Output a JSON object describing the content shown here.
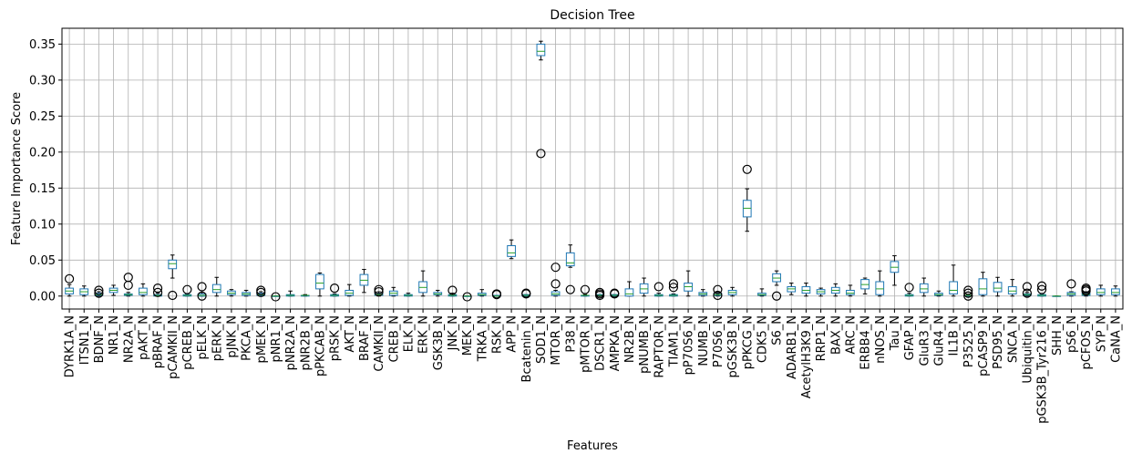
{
  "chart_data": {
    "type": "box",
    "title": "Decision Tree",
    "xlabel": "Features",
    "ylabel": "Feature Importance Score",
    "ylim": [
      -0.018,
      0.372
    ],
    "yticks": [
      0.0,
      0.05,
      0.1,
      0.15,
      0.2,
      0.25,
      0.3,
      0.35
    ],
    "ytick_labels": [
      "0.00",
      "0.05",
      "0.10",
      "0.15",
      "0.20",
      "0.25",
      "0.30",
      "0.35"
    ],
    "grid": true,
    "colors": {
      "box": "#1f77b4",
      "median": "#2ca02c",
      "whisker": "#000000",
      "grid": "#b0b0b0"
    },
    "boxes": [
      {
        "label": "DYRK1A_N",
        "lo": 0.0,
        "q1": 0.003,
        "med": 0.007,
        "q3": 0.011,
        "hi": 0.016,
        "fliers": [
          0.024
        ]
      },
      {
        "label": "ITSN1_N",
        "lo": 0.0,
        "q1": 0.002,
        "med": 0.006,
        "q3": 0.01,
        "hi": 0.014,
        "fliers": []
      },
      {
        "label": "BDNF_N",
        "lo": 0.0,
        "q1": 0.001,
        "med": 0.002,
        "q3": 0.004,
        "hi": 0.006,
        "fliers": [
          0.008,
          0.004
        ]
      },
      {
        "label": "NR1_N",
        "lo": 0.001,
        "q1": 0.005,
        "med": 0.008,
        "q3": 0.011,
        "hi": 0.015,
        "fliers": []
      },
      {
        "label": "NR2A_N",
        "lo": 0.0,
        "q1": 0.001,
        "med": 0.002,
        "q3": 0.003,
        "hi": 0.005,
        "fliers": [
          0.026,
          0.015
        ]
      },
      {
        "label": "pAKT_N",
        "lo": 0.0,
        "q1": 0.002,
        "med": 0.005,
        "q3": 0.011,
        "hi": 0.017,
        "fliers": []
      },
      {
        "label": "pBRAF_N",
        "lo": 0.0,
        "q1": 0.0,
        "med": 0.001,
        "q3": 0.002,
        "hi": 0.004,
        "fliers": [
          0.011,
          0.005
        ]
      },
      {
        "label": "pCAMKII_N",
        "lo": 0.025,
        "q1": 0.038,
        "med": 0.045,
        "q3": 0.05,
        "hi": 0.057,
        "fliers": [
          0.001
        ]
      },
      {
        "label": "pCREB_N",
        "lo": 0.0,
        "q1": 0.0,
        "med": 0.001,
        "q3": 0.002,
        "hi": 0.003,
        "fliers": [
          0.009
        ]
      },
      {
        "label": "pELK_N",
        "lo": 0.0,
        "q1": 0.0,
        "med": 0.001,
        "q3": 0.003,
        "hi": 0.005,
        "fliers": [
          0.013,
          0.0
        ]
      },
      {
        "label": "pERK_N",
        "lo": 0.0,
        "q1": 0.005,
        "med": 0.009,
        "q3": 0.016,
        "hi": 0.026,
        "fliers": []
      },
      {
        "label": "pJNK_N",
        "lo": 0.0,
        "q1": 0.002,
        "med": 0.004,
        "q3": 0.007,
        "hi": 0.009,
        "fliers": []
      },
      {
        "label": "PKCA_N",
        "lo": 0.0,
        "q1": 0.001,
        "med": 0.003,
        "q3": 0.005,
        "hi": 0.008,
        "fliers": []
      },
      {
        "label": "pMEK_N",
        "lo": 0.0,
        "q1": 0.001,
        "med": 0.002,
        "q3": 0.004,
        "hi": 0.006,
        "fliers": [
          0.008,
          0.005
        ]
      },
      {
        "label": "pNR1_N",
        "lo": 0.0,
        "q1": 0.0,
        "med": 0.0,
        "q3": 0.0,
        "hi": 0.0,
        "fliers": [
          -0.001
        ]
      },
      {
        "label": "pNR2A_N",
        "lo": 0.0,
        "q1": 0.0,
        "med": 0.001,
        "q3": 0.002,
        "hi": 0.007,
        "fliers": []
      },
      {
        "label": "pNR2B_N",
        "lo": 0.0,
        "q1": 0.0,
        "med": 0.001,
        "q3": 0.001,
        "hi": 0.002,
        "fliers": []
      },
      {
        "label": "pPKCAB_N",
        "lo": 0.0,
        "q1": 0.01,
        "med": 0.018,
        "q3": 0.03,
        "hi": 0.032,
        "fliers": []
      },
      {
        "label": "pRSK_N",
        "lo": 0.0,
        "q1": 0.0,
        "med": 0.001,
        "q3": 0.002,
        "hi": 0.003,
        "fliers": [
          0.011
        ]
      },
      {
        "label": "AKT_N",
        "lo": 0.0,
        "q1": 0.001,
        "med": 0.004,
        "q3": 0.008,
        "hi": 0.016,
        "fliers": []
      },
      {
        "label": "BRAF_N",
        "lo": 0.005,
        "q1": 0.015,
        "med": 0.022,
        "q3": 0.03,
        "hi": 0.037,
        "fliers": []
      },
      {
        "label": "CAMKII_N",
        "lo": 0.0,
        "q1": 0.001,
        "med": 0.002,
        "q3": 0.004,
        "hi": 0.006,
        "fliers": [
          0.009,
          0.006
        ]
      },
      {
        "label": "CREB_N",
        "lo": 0.0,
        "q1": 0.001,
        "med": 0.004,
        "q3": 0.007,
        "hi": 0.012,
        "fliers": []
      },
      {
        "label": "ELK_N",
        "lo": 0.0,
        "q1": 0.0,
        "med": 0.001,
        "q3": 0.002,
        "hi": 0.004,
        "fliers": []
      },
      {
        "label": "ERK_N",
        "lo": 0.0,
        "q1": 0.005,
        "med": 0.012,
        "q3": 0.02,
        "hi": 0.035,
        "fliers": []
      },
      {
        "label": "GSK3B_N",
        "lo": 0.0,
        "q1": 0.002,
        "med": 0.003,
        "q3": 0.005,
        "hi": 0.008,
        "fliers": []
      },
      {
        "label": "JNK_N",
        "lo": 0.0,
        "q1": 0.0,
        "med": 0.001,
        "q3": 0.002,
        "hi": 0.004,
        "fliers": [
          0.008
        ]
      },
      {
        "label": "MEK_N",
        "lo": 0.0,
        "q1": 0.0,
        "med": 0.0,
        "q3": 0.0,
        "hi": 0.0,
        "fliers": [
          -0.001
        ]
      },
      {
        "label": "TRKA_N",
        "lo": 0.0,
        "q1": 0.001,
        "med": 0.002,
        "q3": 0.004,
        "hi": 0.009,
        "fliers": []
      },
      {
        "label": "RSK_N",
        "lo": 0.0,
        "q1": 0.0,
        "med": 0.0,
        "q3": 0.001,
        "hi": 0.001,
        "fliers": [
          0.003,
          0.002
        ]
      },
      {
        "label": "APP_N",
        "lo": 0.052,
        "q1": 0.055,
        "med": 0.06,
        "q3": 0.07,
        "hi": 0.078,
        "fliers": []
      },
      {
        "label": "Bcatenin_N",
        "lo": 0.0,
        "q1": 0.0,
        "med": 0.001,
        "q3": 0.002,
        "hi": 0.002,
        "fliers": [
          0.004,
          0.003
        ]
      },
      {
        "label": "SOD1_N",
        "lo": 0.328,
        "q1": 0.334,
        "med": 0.34,
        "q3": 0.35,
        "hi": 0.354,
        "fliers": [
          0.198
        ]
      },
      {
        "label": "MTOR_N",
        "lo": 0.0,
        "q1": 0.001,
        "med": 0.003,
        "q3": 0.006,
        "hi": 0.008,
        "fliers": [
          0.04,
          0.017
        ]
      },
      {
        "label": "P38_N",
        "lo": 0.04,
        "q1": 0.042,
        "med": 0.046,
        "q3": 0.06,
        "hi": 0.071,
        "fliers": [
          0.009
        ]
      },
      {
        "label": "pMTOR_N",
        "lo": 0.0,
        "q1": 0.0,
        "med": 0.001,
        "q3": 0.001,
        "hi": 0.002,
        "fliers": [
          0.009
        ]
      },
      {
        "label": "DSCR1_N",
        "lo": 0.0,
        "q1": 0.0,
        "med": 0.001,
        "q3": 0.002,
        "hi": 0.002,
        "fliers": [
          0.005,
          0.003,
          0.001
        ]
      },
      {
        "label": "AMPKA_N",
        "lo": 0.0,
        "q1": 0.0,
        "med": 0.001,
        "q3": 0.002,
        "hi": 0.002,
        "fliers": [
          0.004,
          0.003
        ]
      },
      {
        "label": "NR2B_N",
        "lo": 0.0,
        "q1": 0.0,
        "med": 0.003,
        "q3": 0.01,
        "hi": 0.02,
        "fliers": []
      },
      {
        "label": "pNUMB_N",
        "lo": 0.0,
        "q1": 0.004,
        "med": 0.01,
        "q3": 0.017,
        "hi": 0.025,
        "fliers": []
      },
      {
        "label": "RAPTOR_N",
        "lo": 0.0,
        "q1": 0.0,
        "med": 0.001,
        "q3": 0.002,
        "hi": 0.004,
        "fliers": [
          0.013
        ]
      },
      {
        "label": "TIAM1_N",
        "lo": 0.0,
        "q1": 0.0,
        "med": 0.001,
        "q3": 0.002,
        "hi": 0.003,
        "fliers": [
          0.017,
          0.012
        ]
      },
      {
        "label": "pP70S6_N",
        "lo": 0.0,
        "q1": 0.007,
        "med": 0.013,
        "q3": 0.018,
        "hi": 0.035,
        "fliers": []
      },
      {
        "label": "NUMB_N",
        "lo": 0.0,
        "q1": 0.001,
        "med": 0.003,
        "q3": 0.005,
        "hi": 0.009,
        "fliers": []
      },
      {
        "label": "P70S6_N",
        "lo": 0.0,
        "q1": 0.001,
        "med": 0.002,
        "q3": 0.004,
        "hi": 0.005,
        "fliers": [
          0.009,
          0.001
        ]
      },
      {
        "label": "pGSK3B_N",
        "lo": 0.0,
        "q1": 0.002,
        "med": 0.005,
        "q3": 0.008,
        "hi": 0.012,
        "fliers": []
      },
      {
        "label": "pPKCG_N",
        "lo": 0.09,
        "q1": 0.11,
        "med": 0.122,
        "q3": 0.133,
        "hi": 0.149,
        "fliers": [
          0.176
        ]
      },
      {
        "label": "CDK5_N",
        "lo": 0.0,
        "q1": 0.001,
        "med": 0.002,
        "q3": 0.004,
        "hi": 0.01,
        "fliers": []
      },
      {
        "label": "S6_N",
        "lo": 0.015,
        "q1": 0.02,
        "med": 0.025,
        "q3": 0.031,
        "hi": 0.035,
        "fliers": [
          0.0
        ]
      },
      {
        "label": "ADARB1_N",
        "lo": 0.002,
        "q1": 0.006,
        "med": 0.01,
        "q3": 0.013,
        "hi": 0.018,
        "fliers": []
      },
      {
        "label": "AcetylH3K9_N",
        "lo": 0.0,
        "q1": 0.004,
        "med": 0.008,
        "q3": 0.013,
        "hi": 0.018,
        "fliers": []
      },
      {
        "label": "RRP1_N",
        "lo": 0.0,
        "q1": 0.003,
        "med": 0.006,
        "q3": 0.009,
        "hi": 0.011,
        "fliers": []
      },
      {
        "label": "BAX_N",
        "lo": 0.0,
        "q1": 0.004,
        "med": 0.008,
        "q3": 0.012,
        "hi": 0.017,
        "fliers": []
      },
      {
        "label": "ARC_N",
        "lo": 0.0,
        "q1": 0.002,
        "med": 0.004,
        "q3": 0.008,
        "hi": 0.015,
        "fliers": []
      },
      {
        "label": "ERBB4_N",
        "lo": 0.003,
        "q1": 0.01,
        "med": 0.016,
        "q3": 0.023,
        "hi": 0.025,
        "fliers": []
      },
      {
        "label": "nNOS_N",
        "lo": 0.0,
        "q1": 0.002,
        "med": 0.01,
        "q3": 0.02,
        "hi": 0.035,
        "fliers": []
      },
      {
        "label": "Tau_N",
        "lo": 0.015,
        "q1": 0.033,
        "med": 0.04,
        "q3": 0.048,
        "hi": 0.056,
        "fliers": []
      },
      {
        "label": "GFAP_N",
        "lo": 0.0,
        "q1": 0.0,
        "med": 0.001,
        "q3": 0.002,
        "hi": 0.004,
        "fliers": [
          0.012
        ]
      },
      {
        "label": "GluR3_N",
        "lo": 0.0,
        "q1": 0.005,
        "med": 0.01,
        "q3": 0.017,
        "hi": 0.025,
        "fliers": []
      },
      {
        "label": "GluR4_N",
        "lo": 0.0,
        "q1": 0.001,
        "med": 0.002,
        "q3": 0.004,
        "hi": 0.007,
        "fliers": []
      },
      {
        "label": "IL1B_N",
        "lo": 0.0,
        "q1": 0.003,
        "med": 0.008,
        "q3": 0.02,
        "hi": 0.043,
        "fliers": []
      },
      {
        "label": "P3525_N",
        "lo": 0.0,
        "q1": 0.0,
        "med": 0.001,
        "q3": 0.001,
        "hi": 0.002,
        "fliers": [
          0.008,
          0.004,
          0.0
        ]
      },
      {
        "label": "pCASP9_N",
        "lo": 0.0,
        "q1": 0.002,
        "med": 0.01,
        "q3": 0.024,
        "hi": 0.033,
        "fliers": []
      },
      {
        "label": "PSD95_N",
        "lo": 0.0,
        "q1": 0.006,
        "med": 0.011,
        "q3": 0.019,
        "hi": 0.026,
        "fliers": []
      },
      {
        "label": "SNCA_N",
        "lo": 0.0,
        "q1": 0.003,
        "med": 0.007,
        "q3": 0.013,
        "hi": 0.023,
        "fliers": []
      },
      {
        "label": "Ubiquitin_N",
        "lo": 0.0,
        "q1": 0.001,
        "med": 0.002,
        "q3": 0.003,
        "hi": 0.005,
        "fliers": [
          0.013,
          0.004
        ]
      },
      {
        "label": "pGSK3B_Tyr216_N",
        "lo": 0.0,
        "q1": 0.0,
        "med": 0.001,
        "q3": 0.002,
        "hi": 0.003,
        "fliers": [
          0.014,
          0.009
        ]
      },
      {
        "label": "SHH_N",
        "lo": 0.0,
        "q1": 0.0,
        "med": 0.0,
        "q3": 0.0,
        "hi": 0.0,
        "fliers": []
      },
      {
        "label": "pS6_N",
        "lo": 0.0,
        "q1": 0.001,
        "med": 0.003,
        "q3": 0.005,
        "hi": 0.006,
        "fliers": [
          0.017
        ]
      },
      {
        "label": "pCFOS_N",
        "lo": 0.0,
        "q1": 0.001,
        "med": 0.002,
        "q3": 0.004,
        "hi": 0.006,
        "fliers": [
          0.011,
          0.009,
          0.007
        ]
      },
      {
        "label": "SYP_N",
        "lo": 0.0,
        "q1": 0.002,
        "med": 0.005,
        "q3": 0.01,
        "hi": 0.015,
        "fliers": []
      },
      {
        "label": "CaNA_N",
        "lo": 0.0,
        "q1": 0.002,
        "med": 0.005,
        "q3": 0.01,
        "hi": 0.014,
        "fliers": []
      }
    ]
  }
}
